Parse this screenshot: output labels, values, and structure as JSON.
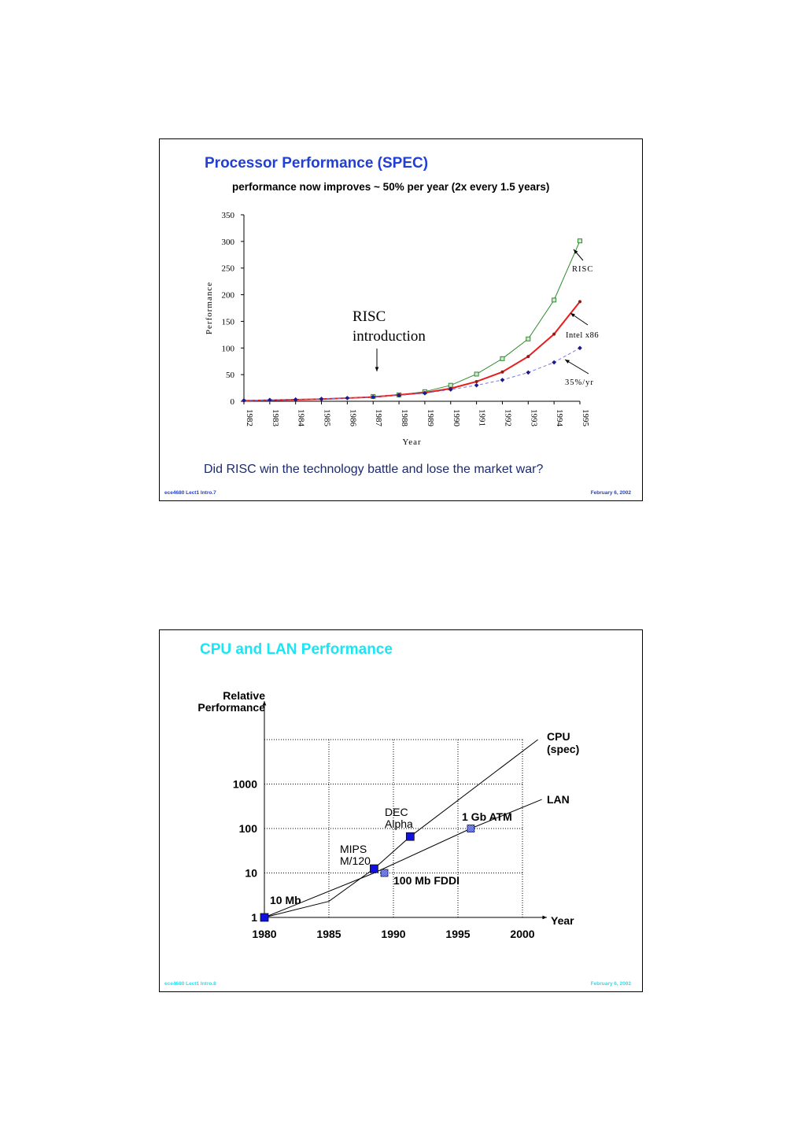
{
  "slide1": {
    "title": "Processor Performance (SPEC)",
    "subtitle": "performance now improves ~ 50% per year (2x every 1.5 years)",
    "question": "Did RISC win the technology battle and lose the market war?",
    "footer_left": "ece4680  Lect1  Intro.7",
    "footer_right": "February 6, 2002"
  },
  "slide2": {
    "title": "CPU and LAN Performance",
    "footer_left": "ece4680  Lect1  Intro.8",
    "footer_right": "February 6, 2002"
  },
  "colors": {
    "risc": "#2e8b2e",
    "intel": "#e81c1c",
    "trend": "#1a1a8c",
    "marker": "#1010e0",
    "title1": "#1f3fd6",
    "title2": "#19e6f5"
  },
  "chart_data": [
    {
      "type": "line",
      "title": "",
      "xlabel": "Year",
      "ylabel": "Performance",
      "ylim": [
        0,
        350
      ],
      "yticks": [
        "0",
        "50",
        "100",
        "150",
        "200",
        "250",
        "300",
        "350"
      ],
      "categories": [
        "1982",
        "1983",
        "1984",
        "1985",
        "1986",
        "1987",
        "1988",
        "1989",
        "1990",
        "1991",
        "1992",
        "1993",
        "1994",
        "1995"
      ],
      "series": [
        {
          "name": "RISC",
          "values": [
            null,
            null,
            null,
            null,
            null,
            9,
            12,
            18,
            30,
            51,
            80,
            117,
            190,
            301
          ]
        },
        {
          "name": "Intel x86",
          "values": [
            1,
            2,
            3,
            4,
            6,
            8,
            12,
            16,
            24,
            37,
            55,
            84,
            126,
            187
          ]
        },
        {
          "name": "35%/yr",
          "values": [
            1.8,
            2.5,
            3.3,
            4.5,
            6,
            8,
            11,
            15,
            22,
            30,
            40,
            54,
            73,
            100
          ]
        }
      ],
      "annotations": {
        "risc_intro_line1": "RISC",
        "risc_intro_line2": "introduction",
        "risc_label": "RISC",
        "intel_label": "Intel x86",
        "trend_label": "35%/yr"
      }
    },
    {
      "type": "line",
      "title": "",
      "xlabel": "Year",
      "ylabel_line1": "Relative",
      "ylabel_line2": "Performance",
      "yscale": "log",
      "ylim": [
        1,
        10000
      ],
      "xlim": [
        1980,
        2000
      ],
      "xticks": [
        "1980",
        "1985",
        "1990",
        "1995",
        "2000"
      ],
      "yticks": [
        "1",
        "10",
        "100",
        "1000"
      ],
      "grid": true,
      "series": [
        {
          "name_line1": "CPU",
          "name_line2": "(spec)",
          "points": [
            [
              1980,
              1
            ],
            [
              1985,
              2.3
            ],
            [
              1988.5,
              12.5
            ],
            [
              1991.3,
              66
            ],
            [
              2001.2,
              10000
            ]
          ]
        },
        {
          "name_line1": "LAN",
          "name_line2": "",
          "points": [
            [
              1980,
              1
            ],
            [
              1988.5,
              10
            ],
            [
              1996,
              100
            ],
            [
              2001.5,
              450
            ]
          ]
        }
      ],
      "markers": [
        {
          "label1": "10 Mb",
          "label2": "",
          "x": 1980,
          "y": 1,
          "kind": "cpu-lan"
        },
        {
          "label1": "MIPS",
          "label2": "M/120",
          "x": 1988.5,
          "y": 12.5,
          "kind": "cpu"
        },
        {
          "label1": "DEC",
          "label2": "Alpha",
          "x": 1991.3,
          "y": 66,
          "kind": "cpu"
        },
        {
          "label1": "100 Mb FDDI",
          "label2": "",
          "x": 1989.3,
          "y": 10,
          "kind": "lan"
        },
        {
          "label1": "1 Gb ATM",
          "label2": "",
          "x": 1996,
          "y": 100,
          "kind": "lan"
        }
      ]
    }
  ]
}
